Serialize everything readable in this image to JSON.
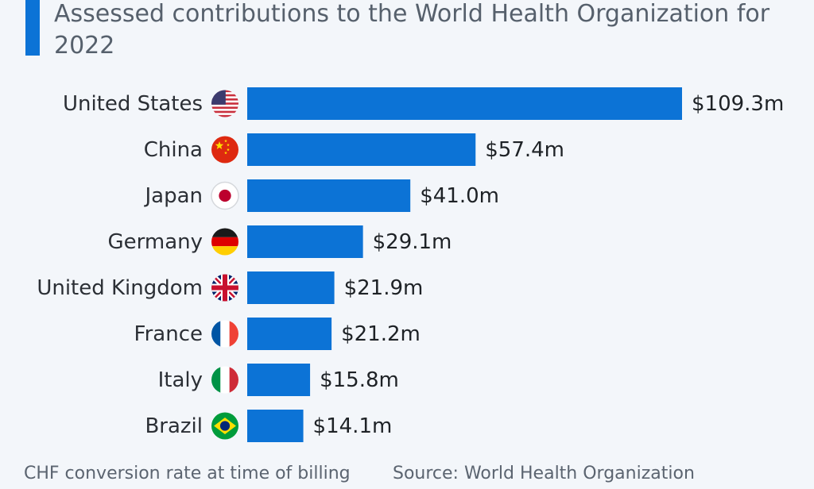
{
  "chart_data": {
    "type": "bar",
    "orientation": "horizontal",
    "title": "Assessed contributions to the World Health Organization for 2022",
    "categories": [
      "United States",
      "China",
      "Japan",
      "Germany",
      "United Kingdom",
      "France",
      "Italy",
      "Brazil"
    ],
    "values": [
      109.3,
      57.4,
      41.0,
      29.1,
      21.9,
      21.2,
      15.8,
      14.1
    ],
    "value_labels": [
      "$109.3m",
      "$57.4m",
      "$41.0m",
      "$29.1m",
      "$21.9m",
      "$21.2m",
      "$15.8m",
      "$14.1m"
    ],
    "flag_icons": [
      "us-flag-icon",
      "china-flag-icon",
      "japan-flag-icon",
      "germany-flag-icon",
      "uk-flag-icon",
      "france-flag-icon",
      "italy-flag-icon",
      "brazil-flag-icon"
    ],
    "bar_color": "#0c73d6",
    "accent_color": "#0c73d6",
    "grid": false,
    "xlim": [
      0,
      109.3
    ]
  },
  "footer": {
    "note": "CHF conversion rate at time of billing",
    "source": "Source: World Health Organization"
  }
}
